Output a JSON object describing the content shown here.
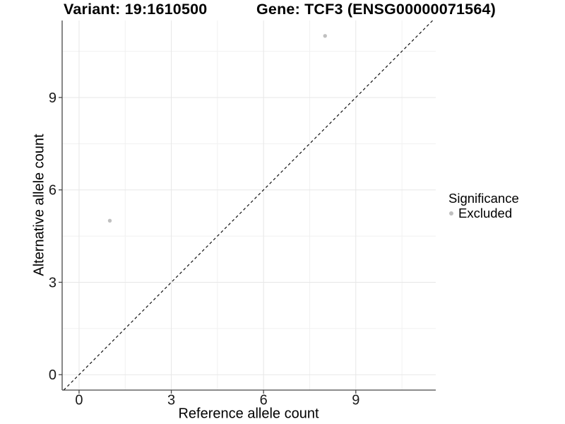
{
  "titles": {
    "variant": "Variant: 19:1610500",
    "gene": "Gene: TCF3 (ENSG00000071564)"
  },
  "legend": {
    "title": "Significance",
    "items": [
      {
        "label": "Excluded",
        "color": "#bfbfbf"
      }
    ]
  },
  "chart_data": {
    "type": "scatter",
    "title_left": "Variant: 19:1610500",
    "title_right": "Gene: TCF3 (ENSG00000071564)",
    "xlabel": "Reference allele count",
    "ylabel": "Alternative allele count",
    "xlim": [
      -0.55,
      11.6
    ],
    "ylim": [
      -0.5,
      11.5
    ],
    "x_major_breaks": [
      0,
      3,
      6,
      9
    ],
    "x_minor_breaks": [
      1.5,
      4.5,
      7.5,
      10.5
    ],
    "y_major_breaks": [
      0,
      3,
      6,
      9
    ],
    "y_minor_breaks": [
      1.5,
      4.5,
      7.5,
      10.5
    ],
    "grid": true,
    "legend_position": "right",
    "points": [
      {
        "x": 1,
        "y": 5,
        "significance": "Excluded"
      },
      {
        "x": 8,
        "y": 11,
        "significance": "Excluded"
      }
    ],
    "reference_line": {
      "slope": 1,
      "intercept": 0,
      "style": "dashed"
    },
    "colors": {
      "point": "#c0c0c0",
      "grid_major": "#e7e7e7",
      "grid_minor": "#f1f1f1",
      "axis": "#474747",
      "tick": "#474747",
      "tick_label": "#1a1a1a",
      "reference_line": "#111111"
    }
  }
}
